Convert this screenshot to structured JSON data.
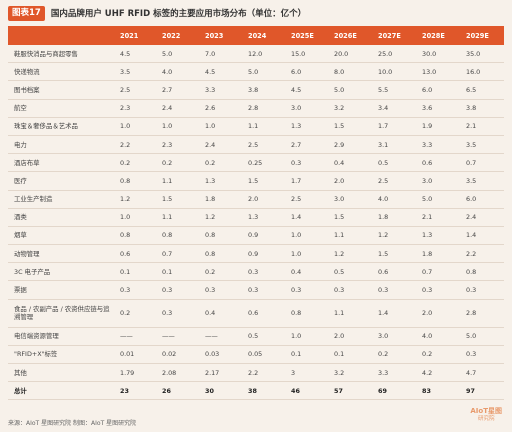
{
  "header": {
    "badge": "图表17",
    "title": "国内品牌用户 UHF RFID 标签的主要应用市场分布（单位：亿个）"
  },
  "table": {
    "columns": [
      "",
      "2021",
      "2022",
      "2023",
      "2024",
      "2025E",
      "2026E",
      "2027E",
      "2028E",
      "2029E"
    ],
    "rows": [
      [
        "鞋服快消品与商超零售",
        "4.5",
        "5.0",
        "7.0",
        "12.0",
        "15.0",
        "20.0",
        "25.0",
        "30.0",
        "35.0"
      ],
      [
        "快递物流",
        "3.5",
        "4.0",
        "4.5",
        "5.0",
        "6.0",
        "8.0",
        "10.0",
        "13.0",
        "16.0"
      ],
      [
        "图书档案",
        "2.5",
        "2.7",
        "3.3",
        "3.8",
        "4.5",
        "5.0",
        "5.5",
        "6.0",
        "6.5"
      ],
      [
        "航空",
        "2.3",
        "2.4",
        "2.6",
        "2.8",
        "3.0",
        "3.2",
        "3.4",
        "3.6",
        "3.8"
      ],
      [
        "珠宝＆奢侈品＆艺术品",
        "1.0",
        "1.0",
        "1.0",
        "1.1",
        "1.3",
        "1.5",
        "1.7",
        "1.9",
        "2.1"
      ],
      [
        "电力",
        "2.2",
        "2.3",
        "2.4",
        "2.5",
        "2.7",
        "2.9",
        "3.1",
        "3.3",
        "3.5"
      ],
      [
        "酒店布草",
        "0.2",
        "0.2",
        "0.2",
        "0.25",
        "0.3",
        "0.4",
        "0.5",
        "0.6",
        "0.7"
      ],
      [
        "医疗",
        "0.8",
        "1.1",
        "1.3",
        "1.5",
        "1.7",
        "2.0",
        "2.5",
        "3.0",
        "3.5"
      ],
      [
        "工业生产制造",
        "1.2",
        "1.5",
        "1.8",
        "2.0",
        "2.5",
        "3.0",
        "4.0",
        "5.0",
        "6.0"
      ],
      [
        "酒类",
        "1.0",
        "1.1",
        "1.2",
        "1.3",
        "1.4",
        "1.5",
        "1.8",
        "2.1",
        "2.4"
      ],
      [
        "烟草",
        "0.8",
        "0.8",
        "0.8",
        "0.9",
        "1.0",
        "1.1",
        "1.2",
        "1.3",
        "1.4"
      ],
      [
        "动物管理",
        "0.6",
        "0.7",
        "0.8",
        "0.9",
        "1.0",
        "1.2",
        "1.5",
        "1.8",
        "2.2"
      ],
      [
        "3C 电子产品",
        "0.1",
        "0.1",
        "0.2",
        "0.3",
        "0.4",
        "0.5",
        "0.6",
        "0.7",
        "0.8"
      ],
      [
        "票据",
        "0.3",
        "0.3",
        "0.3",
        "0.3",
        "0.3",
        "0.3",
        "0.3",
        "0.3",
        "0.3"
      ],
      [
        "食品 / 农副产品 / 农资供应链与追溯管理",
        "0.2",
        "0.3",
        "0.4",
        "0.6",
        "0.8",
        "1.1",
        "1.4",
        "2.0",
        "2.8"
      ],
      [
        "电信端资源管理",
        "——",
        "——",
        "——",
        "0.5",
        "1.0",
        "2.0",
        "3.0",
        "4.0",
        "5.0"
      ],
      [
        "\"RFID+X\"标签",
        "0.01",
        "0.02",
        "0.03",
        "0.05",
        "0.1",
        "0.1",
        "0.2",
        "0.2",
        "0.3"
      ],
      [
        "其他",
        "1.79",
        "2.08",
        "2.17",
        "2.2",
        "3",
        "3.2",
        "3.3",
        "4.2",
        "4.7"
      ],
      [
        "总计",
        "23",
        "26",
        "30",
        "38",
        "46",
        "57",
        "69",
        "83",
        "97"
      ]
    ]
  },
  "footer": {
    "text": "来源：AIoT 星图研究院    制图：AIoT 星图研究院"
  },
  "logo": {
    "main": "AIoT星图",
    "sub": "研究院"
  }
}
